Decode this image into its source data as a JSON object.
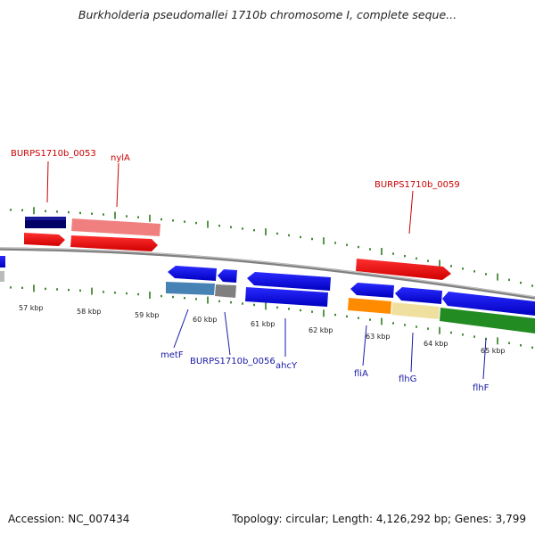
{
  "title": "Burkholderia pseudomallei 1710b chromosome I, complete seque...",
  "footer": {
    "accession_text": "Accession: NC_007434",
    "summary_text": "Topology: circular; Length: 4,126,292 bp; Genes: 3,799"
  },
  "ruler_labels": [
    "57 kbp",
    "58 kbp",
    "59 kbp",
    "60 kbp",
    "61 kbp",
    "62 kbp",
    "63 kbp",
    "64 kbp",
    "65 kbp"
  ],
  "gene_labels": {
    "burps_0053": "BURPS1710b_0053",
    "nyla": "nylA",
    "burps_0059": "BURPS1710b_0059",
    "metf": "metF",
    "burps_0056": "BURPS1710b_0056",
    "ahcy": "ahcY",
    "flia": "fliA",
    "flhg": "flhG",
    "flhf": "flhF"
  },
  "colors": {
    "forward_label": "#cc0000",
    "reverse_label": "#1a1aa8",
    "backbone": "#808080",
    "tick": "#2e7d1e"
  }
}
